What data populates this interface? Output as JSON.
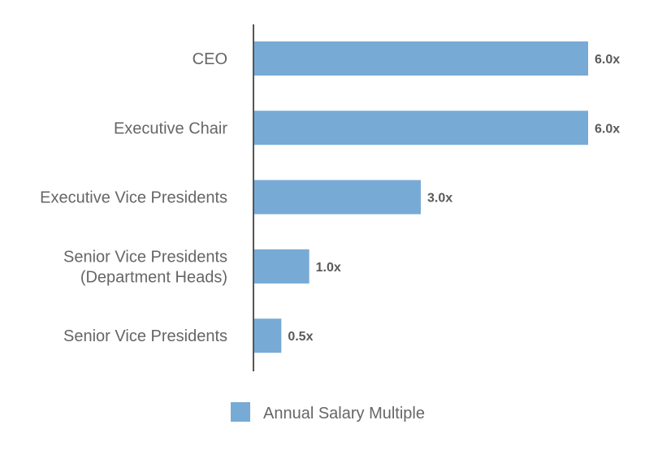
{
  "chart_data": {
    "type": "bar",
    "orientation": "horizontal",
    "title": "",
    "xlabel": "",
    "ylabel": "",
    "categories": [
      [
        "CEO"
      ],
      [
        "Executive Chair"
      ],
      [
        "Executive Vice Presidents"
      ],
      [
        "Senior Vice Presidents",
        "(Department Heads)"
      ],
      [
        "Senior Vice Presidents"
      ]
    ],
    "series": [
      {
        "name": "Annual Salary Multiple",
        "values": [
          6.0,
          6.0,
          3.0,
          1.0,
          0.5
        ],
        "labels": [
          "6.0x",
          "6.0x",
          "3.0x",
          "1.0x",
          "0.5x"
        ]
      }
    ],
    "xlim": [
      0,
      6.0
    ],
    "grid": false,
    "legend_position": "bottom-center",
    "colors": {
      "bar": "#78aad6",
      "axis": "#555555"
    }
  }
}
